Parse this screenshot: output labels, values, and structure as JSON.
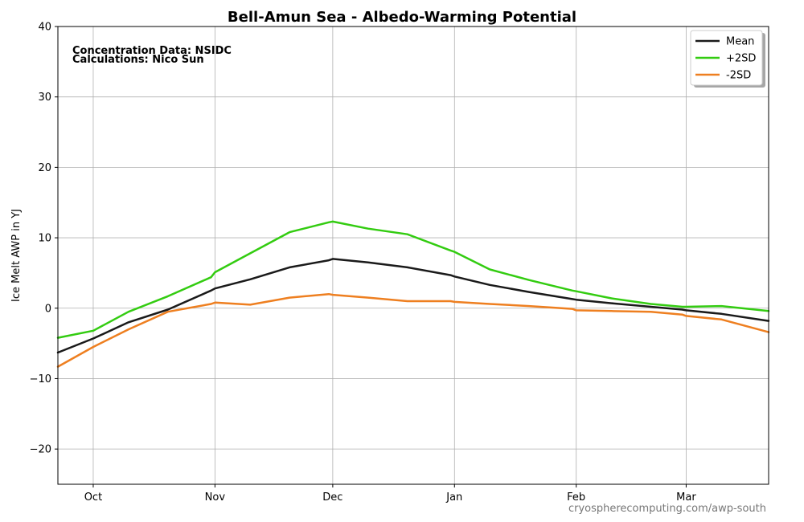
{
  "chart_data": {
    "type": "line",
    "title": "Bell-Amun Sea - Albedo-Warming Potential",
    "ylabel": "Ice Melt AWP in  YJ",
    "xlabel": "",
    "ylim": [
      -25,
      40
    ],
    "xlim": [
      "Sep 22",
      "Mar 22"
    ],
    "grid": true,
    "legend_position": "top-right",
    "x_ticks": [
      "Oct",
      "Nov",
      "Dec",
      "Jan",
      "Feb",
      "Mar"
    ],
    "y_ticks": [
      -20,
      -10,
      0,
      10,
      20,
      30,
      40
    ],
    "y_tick_labels": [
      "−20",
      "−10",
      "0",
      "10",
      "20",
      "30",
      "40"
    ],
    "annotations": [
      "Concentration Data: NSIDC",
      "Calculations: Nico Sun"
    ],
    "source_text": "cryospherecomputing.com/awp-south",
    "x": [
      "Sep 22",
      "Oct 1",
      "Oct 10",
      "Oct 20",
      "Oct 31",
      "Nov 1",
      "Nov 10",
      "Nov 20",
      "Nov 30",
      "Dec 1",
      "Dec 10",
      "Dec 20",
      "Dec 31",
      "Jan 1",
      "Jan 10",
      "Jan 20",
      "Jan 31",
      "Feb 1",
      "Feb 10",
      "Feb 20",
      "Feb 28",
      "Mar 1",
      "Mar 10",
      "Mar 22"
    ],
    "series": [
      {
        "name": "Mean",
        "color": "#1a1a1a",
        "values": [
          -6.3,
          -4.3,
          -2.0,
          -0.2,
          2.5,
          2.8,
          4.1,
          5.8,
          6.8,
          7.0,
          6.5,
          5.8,
          4.7,
          4.5,
          3.3,
          2.3,
          1.3,
          1.2,
          0.7,
          0.2,
          -0.2,
          -0.3,
          -0.8,
          -1.8
        ]
      },
      {
        "name": "+2SD",
        "color": "#33cc11",
        "values": [
          -4.2,
          -3.2,
          -0.5,
          1.7,
          4.4,
          5.1,
          7.8,
          10.8,
          12.2,
          12.3,
          11.3,
          10.5,
          8.2,
          8.0,
          5.5,
          4.0,
          2.5,
          2.4,
          1.4,
          0.6,
          0.2,
          0.2,
          0.3,
          -0.4
        ]
      },
      {
        "name": "-2SD",
        "color": "#ee7f20",
        "values": [
          -8.3,
          -5.5,
          -3.0,
          -0.5,
          0.6,
          0.8,
          0.5,
          1.5,
          2.0,
          1.9,
          1.5,
          1.0,
          1.0,
          0.9,
          0.6,
          0.3,
          -0.1,
          -0.3,
          -0.4,
          -0.5,
          -0.9,
          -1.1,
          -1.6,
          -3.4
        ]
      }
    ]
  }
}
